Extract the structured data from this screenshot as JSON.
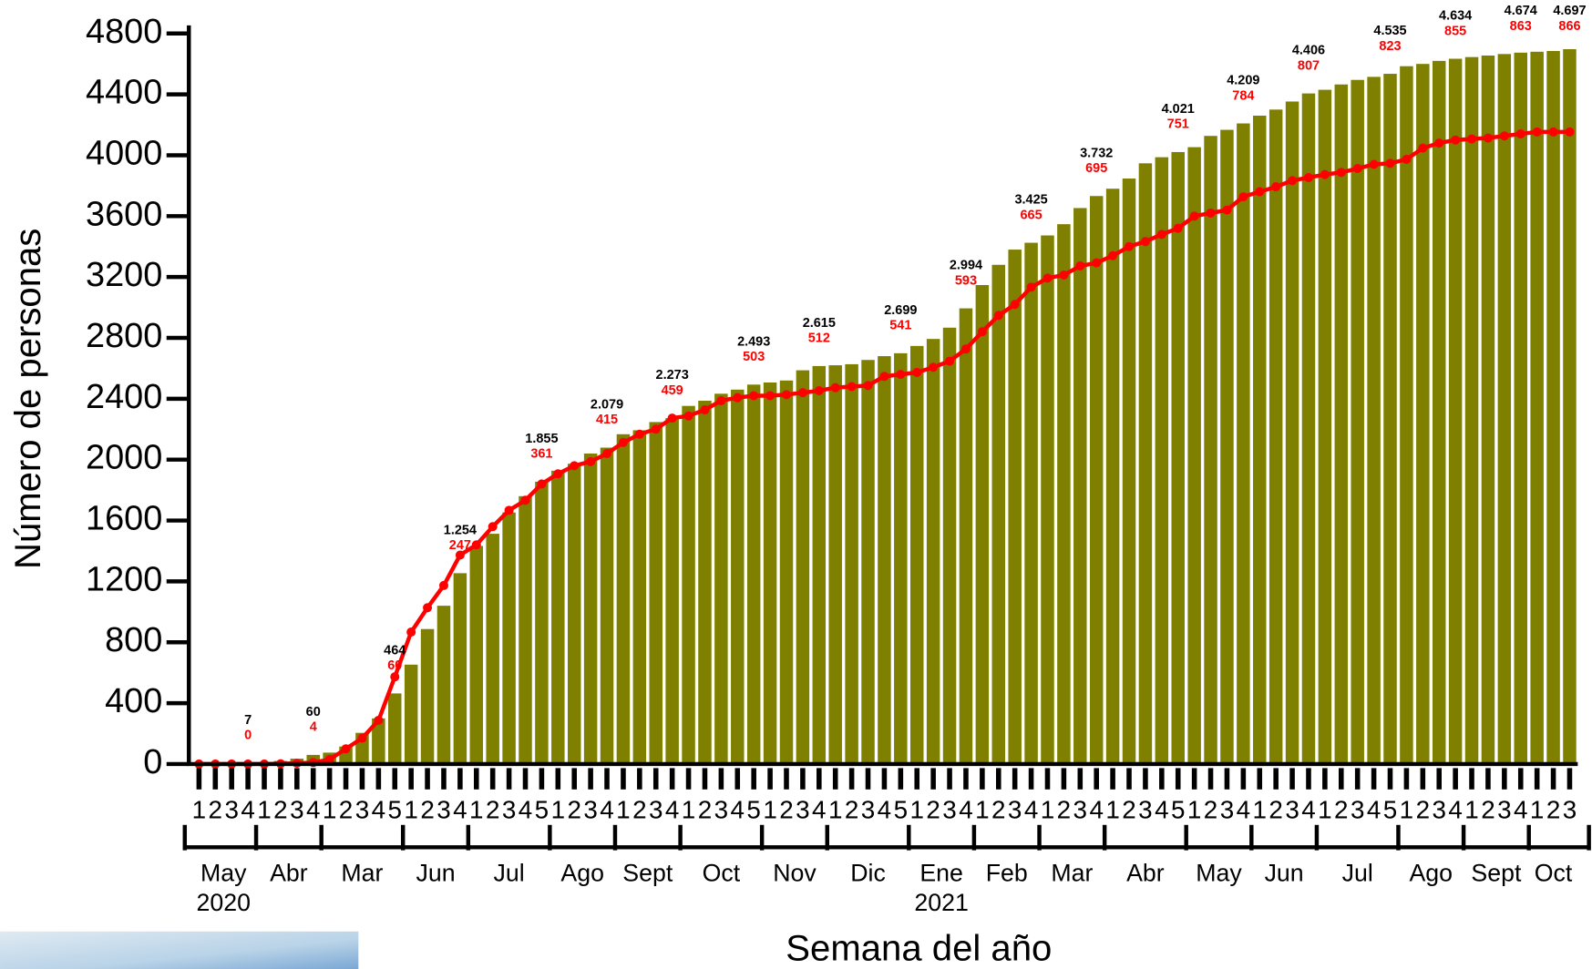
{
  "chart_data": {
    "type": "bar-line",
    "x_title": "Semana del año",
    "y_title": "Número de personas",
    "ylim": [
      0,
      4800
    ],
    "yticks": [
      0,
      400,
      800,
      1200,
      1600,
      2000,
      2400,
      2800,
      3200,
      3600,
      4000,
      4400,
      4800
    ],
    "categories": [
      "1",
      "2",
      "3",
      "4",
      "1",
      "2",
      "3",
      "4",
      "1",
      "2",
      "3",
      "4",
      "5",
      "1",
      "2",
      "3",
      "4",
      "1",
      "2",
      "3",
      "4",
      "5",
      "1",
      "2",
      "3",
      "4",
      "1",
      "2",
      "3",
      "4",
      "1",
      "2",
      "3",
      "4",
      "5",
      "1",
      "2",
      "3",
      "4",
      "1",
      "2",
      "3",
      "4",
      "5",
      "1",
      "2",
      "3",
      "4",
      "1",
      "2",
      "3",
      "4",
      "1",
      "2",
      "3",
      "4",
      "1",
      "2",
      "3",
      "4",
      "5",
      "1",
      "2",
      "3",
      "4",
      "1",
      "2",
      "3",
      "4",
      "1",
      "2",
      "3",
      "4",
      "5",
      "1",
      "2",
      "3",
      "4",
      "1",
      "2",
      "3",
      "4",
      "1",
      "2",
      "3"
    ],
    "months": [
      "May",
      "Abr",
      "Mar",
      "Jun",
      "Jul",
      "Ago",
      "Sept",
      "Oct",
      "Nov",
      "Dic",
      "Ene",
      "Feb",
      "Mar",
      "Abr",
      "May",
      "Jun",
      "Jul",
      "Ago",
      "Sept",
      "Oct"
    ],
    "years": [
      "2020",
      null,
      null,
      null,
      null,
      null,
      null,
      null,
      null,
      null,
      "2021",
      null,
      null,
      null,
      null,
      null,
      null,
      null,
      null,
      null
    ],
    "series": [
      {
        "type": "bar",
        "color": "#7f7f00",
        "values": [
          0,
          1,
          3,
          7,
          10,
          20,
          35,
          60,
          75,
          115,
          205,
          300,
          464,
          653,
          887,
          1040,
          1254,
          1433,
          1513,
          1653,
          1760,
          1855,
          1927,
          1973,
          2040,
          2079,
          2167,
          2193,
          2247,
          2273,
          2353,
          2387,
          2433,
          2460,
          2493,
          2507,
          2520,
          2587,
          2615,
          2620,
          2627,
          2655,
          2680,
          2699,
          2747,
          2793,
          2867,
          2994,
          3147,
          3280,
          3380,
          3425,
          3473,
          3547,
          3653,
          3732,
          3780,
          3847,
          3947,
          3987,
          4021,
          4053,
          4127,
          4167,
          4209,
          4260,
          4300,
          4353,
          4406,
          4430,
          4465,
          4495,
          4515,
          4535,
          4585,
          4600,
          4620,
          4634,
          4645,
          4655,
          4665,
          4674,
          4680,
          4685,
          4697
        ],
        "value_labels": [
          null,
          null,
          null,
          "7",
          null,
          null,
          null,
          "60",
          null,
          null,
          null,
          null,
          "464",
          null,
          null,
          null,
          "1.254",
          null,
          null,
          null,
          null,
          "1.855",
          null,
          null,
          null,
          "2.079",
          null,
          null,
          null,
          "2.273",
          null,
          null,
          null,
          null,
          "2.493",
          null,
          null,
          null,
          "2.615",
          null,
          null,
          null,
          null,
          "2.699",
          null,
          null,
          null,
          "2.994",
          null,
          null,
          null,
          "3.425",
          null,
          null,
          null,
          "3.732",
          null,
          null,
          null,
          null,
          "4.021",
          null,
          null,
          null,
          "4.209",
          null,
          null,
          null,
          "4.406",
          null,
          null,
          null,
          null,
          "4.535",
          null,
          null,
          null,
          "4.634",
          null,
          null,
          null,
          "4.674",
          null,
          null,
          "4.697"
        ]
      },
      {
        "type": "line",
        "color": "#ff0000",
        "values": [
          0,
          0,
          0,
          0,
          0,
          2,
          5,
          10,
          30,
          100,
          170,
          287,
          573,
          867,
          1027,
          1173,
          1373,
          1440,
          1560,
          1667,
          1733,
          1840,
          1907,
          1960,
          1987,
          2040,
          2113,
          2167,
          2200,
          2273,
          2287,
          2327,
          2387,
          2407,
          2420,
          2420,
          2427,
          2440,
          2453,
          2473,
          2480,
          2487,
          2547,
          2560,
          2573,
          2607,
          2647,
          2727,
          2840,
          2947,
          3020,
          3133,
          3193,
          3213,
          3273,
          3293,
          3340,
          3400,
          3433,
          3480,
          3520,
          3600,
          3620,
          3640,
          3727,
          3760,
          3793,
          3833,
          3853,
          3873,
          3887,
          3913,
          3940,
          3947,
          3973,
          4047,
          4080,
          4100,
          4107,
          4113,
          4127,
          4140,
          4153,
          4153,
          4153
        ],
        "annotations": [
          null,
          null,
          null,
          0,
          null,
          null,
          null,
          4,
          null,
          null,
          null,
          null,
          60,
          null,
          null,
          null,
          247,
          null,
          null,
          null,
          null,
          361,
          null,
          null,
          null,
          415,
          null,
          null,
          null,
          459,
          null,
          null,
          null,
          null,
          503,
          null,
          null,
          null,
          512,
          null,
          null,
          null,
          null,
          541,
          null,
          null,
          null,
          593,
          null,
          null,
          null,
          665,
          null,
          null,
          null,
          695,
          null,
          null,
          null,
          null,
          751,
          null,
          null,
          null,
          784,
          null,
          null,
          null,
          807,
          null,
          null,
          null,
          null,
          823,
          null,
          null,
          null,
          855,
          null,
          null,
          null,
          863,
          null,
          null,
          866
        ]
      }
    ]
  }
}
